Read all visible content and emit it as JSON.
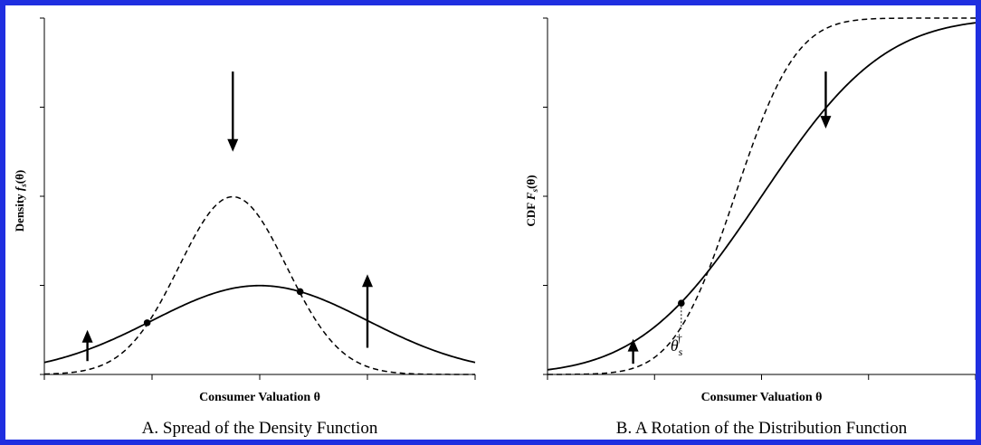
{
  "chart_data": [
    {
      "type": "line",
      "panel": "A",
      "caption": "A. Spread of the Density Function",
      "xlabel": "Consumer Valuation θ",
      "ylabel": "Density f_s(θ)",
      "ylabel_main": "Density ",
      "ylabel_f": "f",
      "ylabel_sub": "s",
      "ylabel_arg": "(θ)",
      "xlim": [
        -4,
        4
      ],
      "ylim": [
        0,
        0.8
      ],
      "series": [
        {
          "style": "solid",
          "distribution": "normal",
          "mean": 0,
          "sd": 2
        },
        {
          "style": "dashed",
          "distribution": "normal",
          "mean": -0.5,
          "sd": 1
        }
      ],
      "markers": [
        {
          "x": -2.09,
          "y": 0.116
        },
        {
          "x": 0.75,
          "y": 0.186
        }
      ],
      "arrows": [
        {
          "x": -3.2,
          "from": 0.03,
          "to": 0.1,
          "direction": "up"
        },
        {
          "x": -0.5,
          "from": 0.68,
          "to": 0.5,
          "direction": "down"
        },
        {
          "x": 2.0,
          "from": 0.06,
          "to": 0.225,
          "direction": "up"
        }
      ]
    },
    {
      "type": "line",
      "panel": "B",
      "caption": "B. A Rotation of the Distribution Function",
      "xlabel": "Consumer Valuation θ",
      "ylabel": "CDF F_s(θ)",
      "ylabel_main": "CDF ",
      "ylabel_f": "F",
      "ylabel_sub": "s",
      "ylabel_arg": "(θ)",
      "xlim": [
        -4,
        4
      ],
      "ylim": [
        0,
        1
      ],
      "series": [
        {
          "style": "solid",
          "distribution": "normal_cdf",
          "mean": 0,
          "sd": 1.8
        },
        {
          "style": "dashed",
          "distribution": "normal_cdf",
          "mean": -0.5,
          "sd": 0.9
        }
      ],
      "markers": [
        {
          "x": -1.5,
          "y": 0.2
        }
      ],
      "arrows": [
        {
          "x": -2.4,
          "from": 0.03,
          "to": 0.1,
          "direction": "up"
        },
        {
          "x": 1.2,
          "from": 0.85,
          "to": 0.69,
          "direction": "down"
        }
      ],
      "annotation": {
        "text": "θ",
        "sub": "s",
        "sup": "†",
        "x": -1.5
      }
    }
  ]
}
